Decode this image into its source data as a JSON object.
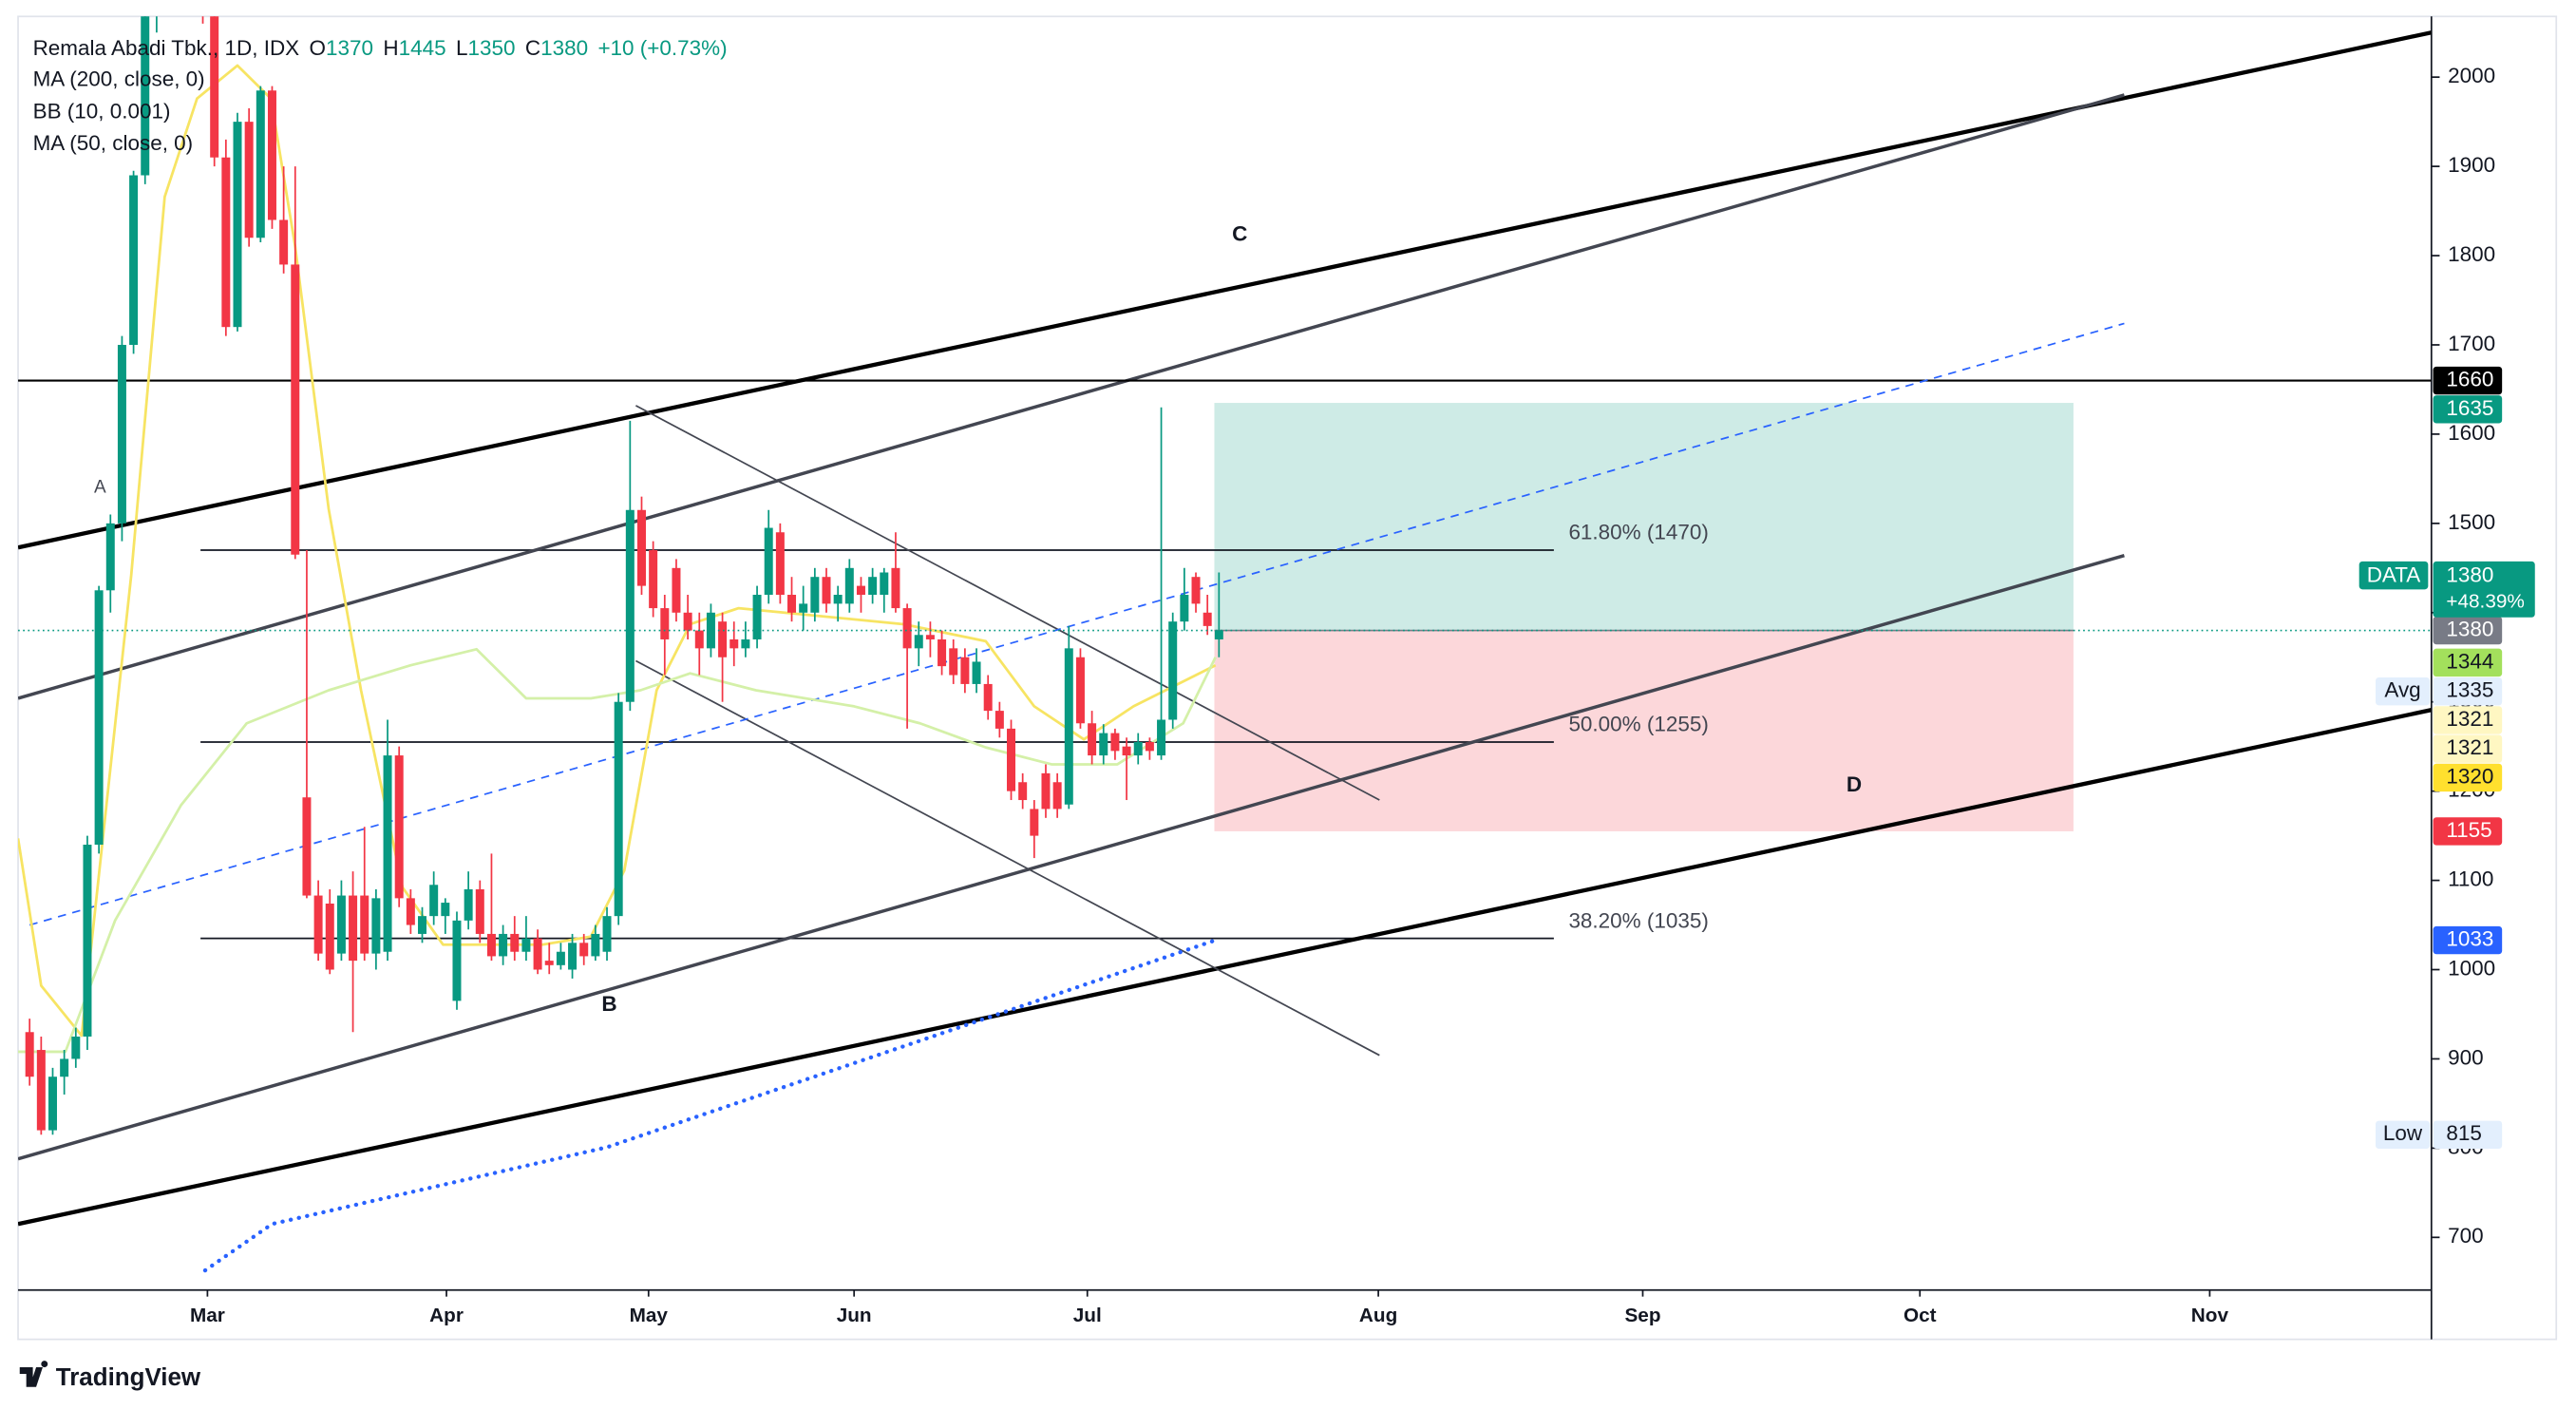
{
  "chart_data": {
    "type": "candlestick",
    "header": {
      "symbol": "Remala Abadi Tbk., 1D, IDX",
      "ohlc_labels": [
        "O",
        "H",
        "L",
        "C"
      ],
      "change": "+10 (+0.73%)"
    },
    "indicators": [
      {
        "label": "MA (200, close, 0)",
        "color": "#2962ff",
        "style": "dotted",
        "x": [
          15.2,
          21,
          50,
          102.7
        ],
        "y": [
          663,
          715,
          801,
          1033
        ]
      },
      {
        "label": "BB (10, 0.001)",
        "color": "#f7e463",
        "style": "solid",
        "x": [
          -1,
          1,
          4.5,
          8.8,
          11.7,
          14.5,
          18,
          20.9,
          23,
          25.9,
          28.7,
          32.3,
          35.8,
          44.4,
          48.6,
          51.5,
          54.3,
          57.2,
          61.4,
          75.7,
          82.8,
          87,
          91.3,
          95.6,
          102.7
        ],
        "y": [
          1147,
          982,
          926,
          1442,
          1866,
          1976,
          2013,
          1976,
          1810,
          1516,
          1313,
          1092,
          1028,
          1028,
          1037,
          1111,
          1313,
          1387,
          1405,
          1387,
          1368,
          1295,
          1258,
          1295,
          1341
        ]
      },
      {
        "label": "MA (50, close, 0)",
        "color": "#d4f0a8",
        "style": "solid",
        "x": [
          -1,
          3.1,
          7.4,
          13.1,
          18.8,
          25.9,
          33,
          38.7,
          43,
          48.6,
          52.9,
          57.2,
          62.9,
          71.4,
          77.1,
          82.8,
          88.5,
          94.2,
          99.9,
          102.7
        ],
        "y": [
          908,
          908,
          1055,
          1184,
          1276,
          1313,
          1341,
          1359,
          1304,
          1304,
          1313,
          1332,
          1313,
          1295,
          1276,
          1249,
          1230,
          1230,
          1276,
          1350
        ]
      }
    ],
    "x": [
      0,
      1,
      2,
      3,
      4,
      5,
      6,
      7,
      8,
      9,
      10,
      11,
      12,
      13,
      14,
      15,
      16,
      17,
      18,
      19,
      20,
      21,
      22,
      23,
      24,
      25,
      26,
      27,
      28,
      29,
      30,
      31,
      32,
      33,
      34,
      35,
      36,
      37,
      38,
      39,
      40,
      41,
      42,
      43,
      44,
      45,
      46,
      47,
      48,
      49,
      50,
      51,
      52,
      53,
      54,
      55,
      56,
      57,
      58,
      59,
      60,
      61,
      62,
      63,
      64,
      65,
      66,
      67,
      68,
      69,
      70,
      71,
      72,
      73,
      74,
      75,
      76,
      77,
      78,
      79,
      80,
      81,
      82,
      83,
      84,
      85,
      86,
      87,
      88,
      89,
      90,
      91,
      92,
      93,
      94,
      95,
      96,
      97,
      98,
      99,
      100,
      101,
      102,
      103
    ],
    "open": [
      930,
      910,
      820,
      880,
      900,
      925,
      1140,
      1425,
      1500,
      1700,
      1890,
      2070,
      2140,
      2180,
      2150,
      2100,
      2080,
      1910,
      1720,
      1950,
      1820,
      1985,
      1840,
      1790,
      1193,
      1083,
      1074,
      1018,
      1083,
      1083,
      1018,
      1020,
      1240,
      1080,
      1040,
      1060,
      1060,
      965,
      1055,
      1090,
      1040,
      1015,
      1040,
      1020,
      1035,
      1010,
      1005,
      1000,
      1030,
      1015,
      1020,
      1060,
      1300,
      1515,
      1470,
      1405,
      1450,
      1400,
      1380,
      1360,
      1390,
      1370,
      1360,
      1370,
      1420,
      1490,
      1420,
      1400,
      1400,
      1440,
      1410,
      1410,
      1430,
      1420,
      1420,
      1450,
      1405,
      1360,
      1375,
      1370,
      1360,
      1350,
      1320,
      1320,
      1290,
      1270,
      1210,
      1180,
      1220,
      1210,
      1185,
      1350,
      1276,
      1240,
      1265,
      1250,
      1240,
      1255,
      1240,
      1280,
      1390,
      1440,
      1400,
      1370
    ],
    "high": [
      945,
      925,
      890,
      910,
      935,
      1150,
      1430,
      1510,
      1710,
      1895,
      2080,
      2150,
      2200,
      2220,
      2190,
      2130,
      2090,
      1930,
      1960,
      1965,
      1990,
      1990,
      1900,
      1900,
      1470,
      1100,
      1090,
      1100,
      1110,
      1160,
      1090,
      1280,
      1250,
      1090,
      1070,
      1110,
      1080,
      1065,
      1110,
      1100,
      1130,
      1050,
      1060,
      1060,
      1045,
      1030,
      1030,
      1040,
      1040,
      1050,
      1070,
      1310,
      1615,
      1530,
      1480,
      1420,
      1460,
      1420,
      1400,
      1410,
      1400,
      1390,
      1390,
      1430,
      1515,
      1500,
      1440,
      1430,
      1450,
      1450,
      1430,
      1460,
      1440,
      1450,
      1450,
      1490,
      1410,
      1390,
      1390,
      1380,
      1370,
      1360,
      1360,
      1330,
      1300,
      1280,
      1220,
      1190,
      1230,
      1220,
      1385,
      1360,
      1290,
      1275,
      1270,
      1260,
      1265,
      1260,
      1630,
      1400,
      1450,
      1445,
      1420,
      1445
    ],
    "low": [
      870,
      815,
      815,
      860,
      890,
      910,
      1130,
      1400,
      1480,
      1690,
      1880,
      2050,
      2100,
      2120,
      2080,
      2060,
      1900,
      1710,
      1715,
      1810,
      1815,
      1830,
      1780,
      1460,
      1080,
      1010,
      995,
      1010,
      930,
      1010,
      1000,
      1010,
      1070,
      1040,
      1030,
      1050,
      1040,
      955,
      1045,
      1030,
      1010,
      1005,
      1010,
      1010,
      995,
      995,
      1000,
      990,
      1005,
      1010,
      1010,
      1050,
      1290,
      1420,
      1395,
      1330,
      1390,
      1370,
      1330,
      1350,
      1300,
      1340,
      1350,
      1360,
      1410,
      1410,
      1390,
      1380,
      1390,
      1400,
      1390,
      1400,
      1400,
      1410,
      1400,
      1400,
      1270,
      1340,
      1350,
      1330,
      1320,
      1310,
      1310,
      1280,
      1260,
      1190,
      1180,
      1125,
      1170,
      1170,
      1180,
      1270,
      1230,
      1230,
      1235,
      1190,
      1230,
      1235,
      1235,
      1270,
      1380,
      1400,
      1375,
      1350
    ],
    "close": [
      880,
      820,
      880,
      900,
      925,
      1140,
      1425,
      1500,
      1700,
      1890,
      2070,
      2140,
      2180,
      2150,
      2100,
      2080,
      1910,
      1720,
      1950,
      1820,
      1985,
      1840,
      1790,
      1465,
      1083,
      1018,
      1000,
      1083,
      1010,
      1018,
      1080,
      1240,
      1080,
      1050,
      1060,
      1095,
      1075,
      1055,
      1090,
      1040,
      1015,
      1040,
      1020,
      1035,
      1000,
      1005,
      1020,
      1030,
      1015,
      1040,
      1060,
      1300,
      1515,
      1430,
      1405,
      1370,
      1400,
      1380,
      1360,
      1400,
      1350,
      1360,
      1370,
      1420,
      1495,
      1420,
      1400,
      1410,
      1440,
      1410,
      1420,
      1450,
      1420,
      1440,
      1445,
      1405,
      1360,
      1375,
      1370,
      1340,
      1330,
      1320,
      1345,
      1290,
      1270,
      1200,
      1190,
      1150,
      1180,
      1180,
      1360,
      1276,
      1240,
      1265,
      1245,
      1240,
      1255,
      1245,
      1280,
      1390,
      1420,
      1410,
      1385,
      1380
    ],
    "up_color": "#089981",
    "down_color": "#f23645",
    "xlim": [
      -1,
      208
    ],
    "ylim": [
      641,
      2068
    ],
    "xticks": [
      {
        "value": 15.4,
        "label": "Mar"
      },
      {
        "value": 36.1,
        "label": "Apr"
      },
      {
        "value": 53.6,
        "label": "May"
      },
      {
        "value": 71.4,
        "label": "Jun"
      },
      {
        "value": 91.6,
        "label": "Jul"
      },
      {
        "value": 116.8,
        "label": "Aug"
      },
      {
        "value": 139.7,
        "label": "Sep"
      },
      {
        "value": 163.7,
        "label": "Oct"
      },
      {
        "value": 188.8,
        "label": "Nov"
      }
    ],
    "yticks": [
      700,
      800,
      900,
      1000,
      1100,
      1200,
      1300,
      1400,
      1500,
      1600,
      1700,
      1800,
      1900,
      2000
    ],
    "lines": [
      {
        "x": [
          -1,
          208
        ],
        "y": [
          1473,
          2050
        ],
        "color": "#000000",
        "width": 2.5
      },
      {
        "x": [
          -1,
          181.4
        ],
        "y": [
          1304,
          1980
        ],
        "color": "#434651",
        "width": 2
      },
      {
        "x": [
          -1,
          181.4
        ],
        "y": [
          788,
          1464
        ],
        "color": "#434651",
        "width": 2
      },
      {
        "x": [
          -1,
          208
        ],
        "y": [
          715,
          1291
        ],
        "color": "#000000",
        "width": 2.5
      },
      {
        "x": [
          52.5,
          116.9
        ],
        "y": [
          1632,
          1190
        ],
        "color": "#434651",
        "width": 1
      },
      {
        "x": [
          52.5,
          116.9
        ],
        "y": [
          1346,
          904
        ],
        "color": "#434651",
        "width": 1
      },
      {
        "x": [
          -1,
          208
        ],
        "y": [
          1660,
          1660
        ],
        "color": "#000000",
        "width": 1.2
      },
      {
        "x": [
          0,
          181.4
        ],
        "y": [
          1050,
          1724
        ],
        "color": "#2962ff",
        "width": 1,
        "dash": true
      }
    ],
    "fib": {
      "x": [
        14.8,
        132
      ],
      "levels": [
        {
          "value": 1470,
          "label": "61.80% (1470)"
        },
        {
          "value": 1255,
          "label": "50.00% (1255)"
        },
        {
          "value": 1035,
          "label": "38.20% (1035)"
        }
      ]
    },
    "position": {
      "x": [
        102.6,
        177
      ],
      "target": 1635,
      "entry": 1380,
      "stop": 1155
    },
    "annotations": [
      {
        "text": "A",
        "x": 6.1,
        "y": 1540
      },
      {
        "text": "B",
        "x": 50.2,
        "y": 960
      },
      {
        "text": "C",
        "x": 104.8,
        "y": 1823
      },
      {
        "text": "D",
        "x": 158,
        "y": 1206
      }
    ],
    "price_tags": [
      {
        "value": 1660,
        "bg": "#000000",
        "fg": "#ffffff"
      },
      {
        "value": 1635,
        "bg": "#089981",
        "fg": "#ffffff"
      },
      {
        "value": 1380,
        "bg": "#787b86",
        "fg": "#ffffff"
      },
      {
        "value": 1344,
        "bg": "#a3e05c",
        "fg": "#131722"
      },
      {
        "value": 1335,
        "label": "Avg",
        "bg": "#e3effd",
        "fg": "#131722"
      },
      {
        "value": 1321,
        "bg": "#fff7c2",
        "fg": "#131722"
      },
      {
        "value": 1321,
        "bg": "#fff7c2",
        "fg": "#131722"
      },
      {
        "value": 1320,
        "bg": "#ffe02e",
        "fg": "#131722"
      },
      {
        "value": 1155,
        "bg": "#f23645",
        "fg": "#ffffff"
      },
      {
        "value": 1033,
        "bg": "#2962ff",
        "fg": "#ffffff"
      },
      {
        "value": 815,
        "label": "Low",
        "bg": "#e3effd",
        "fg": "#131722"
      }
    ],
    "last_tag": {
      "label": "DATA",
      "value": 1380,
      "change": "+48.39%",
      "bg": "#089981",
      "fg": "#ffffff"
    },
    "brand": "TradingView"
  }
}
